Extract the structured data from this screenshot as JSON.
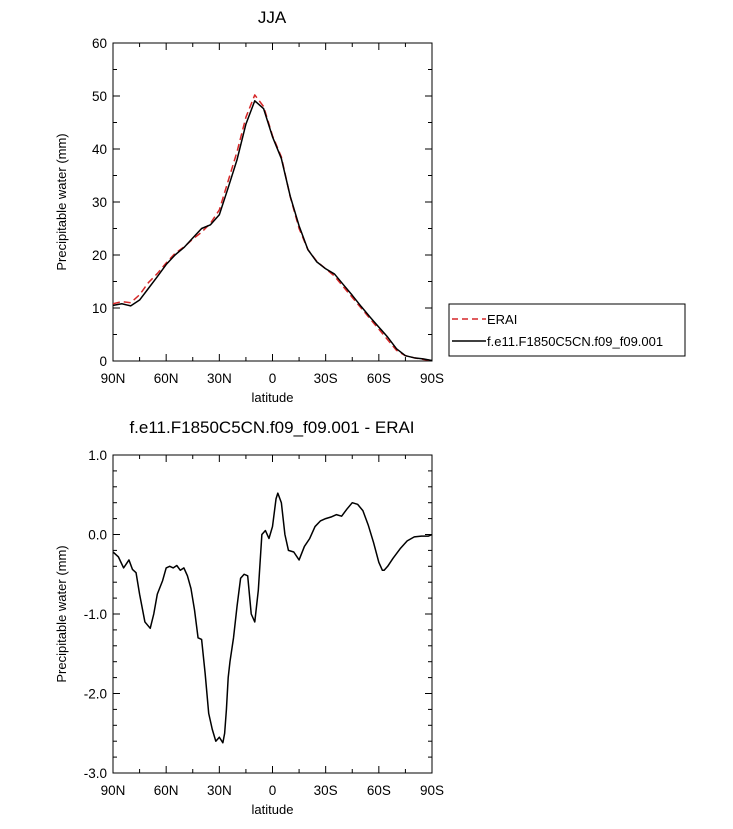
{
  "chart_data": [
    {
      "type": "line",
      "title": "JJA",
      "xlabel": "latitude",
      "ylabel": "Precipitable water (mm)",
      "xlim": [
        90,
        -90
      ],
      "ylim": [
        0,
        60
      ],
      "x_tick_values": [
        90,
        60,
        30,
        0,
        -30,
        -60,
        -90
      ],
      "x_tick_labels": [
        "90N",
        "60N",
        "30N",
        "0",
        "30S",
        "60S",
        "90S"
      ],
      "y_tick_values": [
        0,
        10,
        20,
        30,
        40,
        50,
        60
      ],
      "y_tick_labels": [
        "0",
        "10",
        "20",
        "30",
        "40",
        "50",
        "60"
      ],
      "legend_position": "right-outside",
      "series": [
        {
          "name": "ERAI",
          "color": "#d62728",
          "dash": "dashed",
          "x": [
            90,
            85,
            80,
            75,
            70,
            65,
            60,
            55,
            50,
            45,
            40,
            35,
            30,
            25,
            20,
            15,
            10,
            5,
            0,
            -5,
            -10,
            -15,
            -20,
            -25,
            -30,
            -35,
            -40,
            -45,
            -50,
            -55,
            -60,
            -65,
            -70,
            -75,
            -80,
            -85,
            -90
          ],
          "y": [
            10.8,
            11.2,
            11.0,
            12.5,
            14.8,
            16.5,
            18.5,
            20.3,
            21.5,
            23.0,
            24.3,
            26.0,
            28.5,
            34.0,
            39.5,
            46.0,
            50.2,
            48.0,
            42.5,
            38.5,
            31.0,
            25.0,
            21.0,
            18.8,
            17.4,
            16.0,
            14.0,
            12.0,
            10.0,
            8.0,
            6.0,
            4.0,
            2.0,
            1.0,
            0.6,
            0.3,
            0.1
          ]
        },
        {
          "name": "f.e11.F1850C5CN.f09_f09.001",
          "color": "#000000",
          "dash": "solid",
          "x": [
            90,
            85,
            80,
            75,
            70,
            65,
            60,
            55,
            50,
            45,
            40,
            35,
            30,
            25,
            20,
            15,
            10,
            5,
            0,
            -5,
            -10,
            -15,
            -20,
            -25,
            -30,
            -35,
            -40,
            -45,
            -50,
            -55,
            -60,
            -65,
            -70,
            -75,
            -80,
            -85,
            -90
          ],
          "y": [
            10.5,
            10.8,
            10.4,
            11.5,
            13.7,
            15.9,
            18.2,
            20.0,
            21.4,
            23.2,
            25.0,
            25.7,
            27.6,
            32.7,
            38.0,
            44.7,
            49.1,
            47.6,
            42.3,
            38.2,
            31.1,
            25.5,
            21.0,
            18.7,
            17.4,
            16.4,
            14.4,
            12.4,
            10.3,
            8.3,
            6.4,
            4.5,
            2.3,
            1.0,
            0.6,
            0.4,
            0.1
          ]
        }
      ]
    },
    {
      "type": "line",
      "title": "f.e11.F1850C5CN.f09_f09.001 - ERAI",
      "xlabel": "latitude",
      "ylabel": "Precipitable water (mm)",
      "xlim": [
        90,
        -90
      ],
      "ylim": [
        -3.0,
        1.0
      ],
      "x_tick_values": [
        90,
        60,
        30,
        0,
        -30,
        -60,
        -90
      ],
      "x_tick_labels": [
        "90N",
        "60N",
        "30N",
        "0",
        "30S",
        "60S",
        "90S"
      ],
      "y_tick_values": [
        1.0,
        0.0,
        -1.0,
        -2.0,
        -3.0
      ],
      "y_tick_labels": [
        "1.0",
        "0.0",
        "-1.0",
        "-2.0",
        "-3.0"
      ],
      "series": [
        {
          "color": "#000000",
          "dash": "solid",
          "x": [
            90,
            87,
            84,
            81,
            79,
            77,
            75,
            72,
            69,
            67,
            65,
            62,
            60,
            58,
            56,
            54,
            52,
            50,
            48,
            46,
            44,
            42,
            40,
            38,
            36,
            34,
            32,
            30,
            28,
            27,
            26,
            25,
            24,
            22,
            20,
            18,
            16,
            14,
            12,
            10,
            8,
            6,
            4,
            2,
            0,
            -2,
            -3,
            -5,
            -7,
            -9,
            -12,
            -15,
            -18,
            -21,
            -24,
            -27,
            -30,
            -33,
            -36,
            -39,
            -42,
            -45,
            -48,
            -51,
            -54,
            -57,
            -60,
            -62,
            -63,
            -65,
            -68,
            -72,
            -76,
            -80,
            -84,
            -88,
            -90
          ],
          "y": [
            -0.22,
            -0.28,
            -0.42,
            -0.32,
            -0.44,
            -0.48,
            -0.75,
            -1.1,
            -1.18,
            -1.0,
            -0.75,
            -0.58,
            -0.42,
            -0.4,
            -0.42,
            -0.39,
            -0.45,
            -0.42,
            -0.52,
            -0.68,
            -0.95,
            -1.3,
            -1.32,
            -1.75,
            -2.25,
            -2.45,
            -2.6,
            -2.55,
            -2.62,
            -2.5,
            -2.2,
            -1.8,
            -1.6,
            -1.3,
            -0.9,
            -0.55,
            -0.5,
            -0.52,
            -1.0,
            -1.1,
            -0.7,
            0.0,
            0.05,
            -0.05,
            0.1,
            0.45,
            0.52,
            0.4,
            0.0,
            -0.2,
            -0.22,
            -0.32,
            -0.15,
            -0.05,
            0.1,
            0.17,
            0.2,
            0.22,
            0.25,
            0.23,
            0.32,
            0.4,
            0.38,
            0.3,
            0.12,
            -0.1,
            -0.35,
            -0.45,
            -0.45,
            -0.4,
            -0.3,
            -0.18,
            -0.08,
            -0.03,
            -0.02,
            -0.02,
            0.0
          ]
        }
      ]
    }
  ]
}
